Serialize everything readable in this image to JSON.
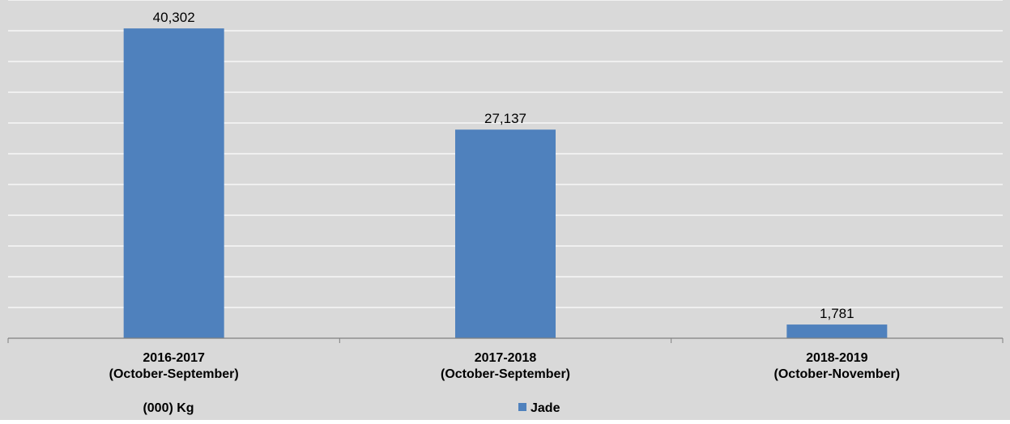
{
  "chart_data": {
    "type": "bar",
    "categories": [
      [
        "2016-2017",
        "(October-September)"
      ],
      [
        "2017-2018",
        "(October-September)"
      ],
      [
        "2018-2019",
        "(October-November)"
      ]
    ],
    "series": [
      {
        "name": "Jade",
        "values": [
          40302,
          27137,
          1781
        ]
      }
    ],
    "value_labels": [
      "40,302",
      "27,137",
      "1,781"
    ],
    "unit_label": "(000) Kg",
    "ylim": [
      0,
      44000
    ],
    "grid": true,
    "legend_position": "bottom"
  },
  "colors": {
    "bar": "#4f81bd",
    "plot_background": "#d9d9d9",
    "gridline": "#ffffff",
    "axis": "#808080"
  }
}
